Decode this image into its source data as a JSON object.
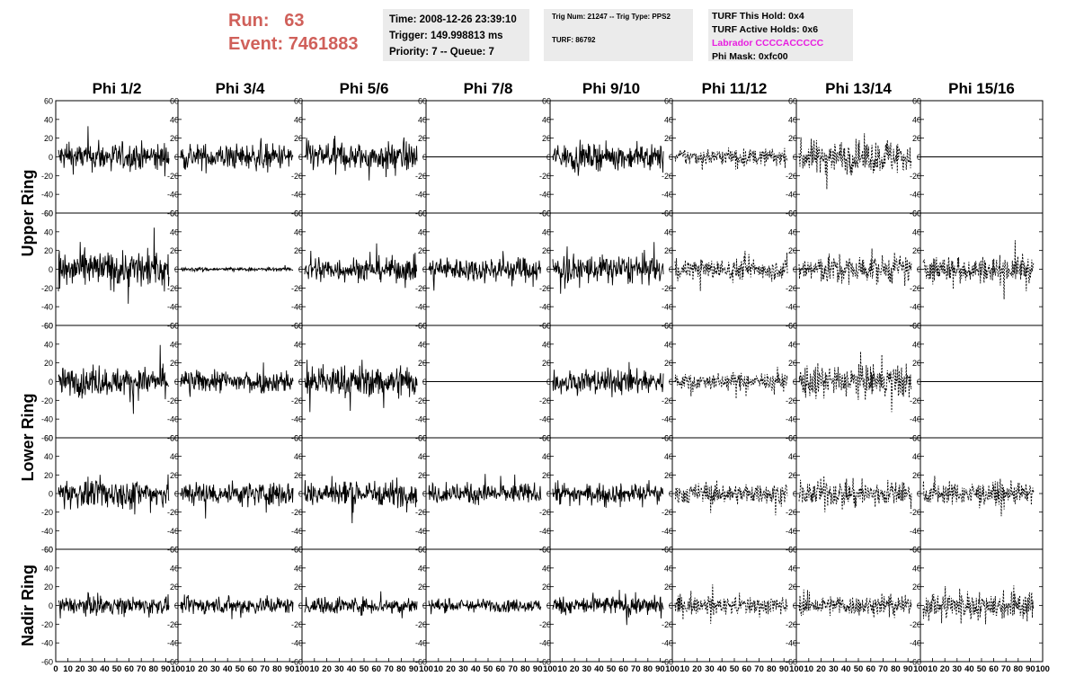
{
  "header": {
    "run_label": "Run:",
    "run_value": "63",
    "event_label": "Event:",
    "event_value": "7461883"
  },
  "info_box_1": {
    "time": "Time: 2008-12-26 23:39:10",
    "trigger": "Trigger: 149.998813 ms",
    "priority_queue": "Priority: 7 -- Queue: 7"
  },
  "info_box_2": {
    "trig_line": "Trig Num: 21247 -- Trig Type: PPS2",
    "turf_line": "TURF: 86792"
  },
  "info_box_3": {
    "this_hold": "TURF This Hold: 0x4",
    "active_holds": "TURF Active Holds: 0x6",
    "labrador": "Labrador CCCCACCCCC",
    "phi_mask": "Phi Mask: 0xfc00"
  },
  "colors": {
    "header_text": "#d0605a",
    "labrador_text": "#e81ee0",
    "box_background": "#ebebeb"
  },
  "columns": [
    "Phi 1/2",
    "Phi 3/4",
    "Phi 5/6",
    "Phi 7/8",
    "Phi 9/10",
    "Phi 11/12",
    "Phi 13/14",
    "Phi 15/16"
  ],
  "row_groups": [
    {
      "label": "Upper Ring",
      "rows": [
        0,
        1
      ]
    },
    {
      "label": "Lower Ring",
      "rows": [
        2,
        3
      ]
    },
    {
      "label": "Nadir Ring",
      "rows": [
        4
      ]
    }
  ],
  "chart_data": {
    "type": "line",
    "y_ticks": [
      "60",
      "40",
      "20",
      "0",
      "-20",
      "-40",
      "-60"
    ],
    "ylim": [
      -60,
      60
    ],
    "xlim": [
      0,
      100
    ],
    "x_ticks": {
      "first": [
        "0",
        "10",
        "20",
        "30",
        "40",
        "50",
        "60",
        "70",
        "80",
        "90",
        "100"
      ],
      "other": [
        "10",
        "20",
        "30",
        "40",
        "50",
        "60",
        "70",
        "80",
        "90",
        "100"
      ]
    },
    "panels": [
      [
        {
          "style": "solid",
          "amp": 15
        },
        {
          "style": "solid",
          "amp": 14
        },
        {
          "style": "solid",
          "amp": 15
        },
        {
          "style": "flat",
          "amp": 0
        },
        {
          "style": "solid",
          "amp": 13
        },
        {
          "style": "dashed",
          "amp": 9
        },
        {
          "style": "dashed",
          "amp": 18
        },
        {
          "style": "flat",
          "amp": 0
        }
      ],
      [
        {
          "style": "solid",
          "amp": 20
        },
        {
          "style": "solid",
          "amp": 2
        },
        {
          "style": "solid",
          "amp": 13
        },
        {
          "style": "solid",
          "amp": 13
        },
        {
          "style": "solid",
          "amp": 16
        },
        {
          "style": "dashed",
          "amp": 11
        },
        {
          "style": "dashed",
          "amp": 15
        },
        {
          "style": "dashed",
          "amp": 14
        }
      ],
      [
        {
          "style": "solid",
          "amp": 15
        },
        {
          "style": "solid",
          "amp": 12
        },
        {
          "style": "solid",
          "amp": 17
        },
        {
          "style": "flat",
          "amp": 0
        },
        {
          "style": "solid",
          "amp": 13
        },
        {
          "style": "dashed",
          "amp": 9
        },
        {
          "style": "dashed",
          "amp": 18
        },
        {
          "style": "flat",
          "amp": 0
        }
      ],
      [
        {
          "style": "solid",
          "amp": 16
        },
        {
          "style": "solid",
          "amp": 13
        },
        {
          "style": "solid",
          "amp": 14
        },
        {
          "style": "solid",
          "amp": 11
        },
        {
          "style": "solid",
          "amp": 10
        },
        {
          "style": "dashed",
          "amp": 11
        },
        {
          "style": "dashed",
          "amp": 14
        },
        {
          "style": "dashed",
          "amp": 12
        }
      ],
      [
        {
          "style": "solid",
          "amp": 9
        },
        {
          "style": "solid",
          "amp": 9
        },
        {
          "style": "solid",
          "amp": 9
        },
        {
          "style": "solid",
          "amp": 7
        },
        {
          "style": "solid",
          "amp": 10
        },
        {
          "style": "dashed",
          "amp": 10
        },
        {
          "style": "dashed",
          "amp": 11
        },
        {
          "style": "dashed",
          "amp": 15
        }
      ]
    ]
  }
}
